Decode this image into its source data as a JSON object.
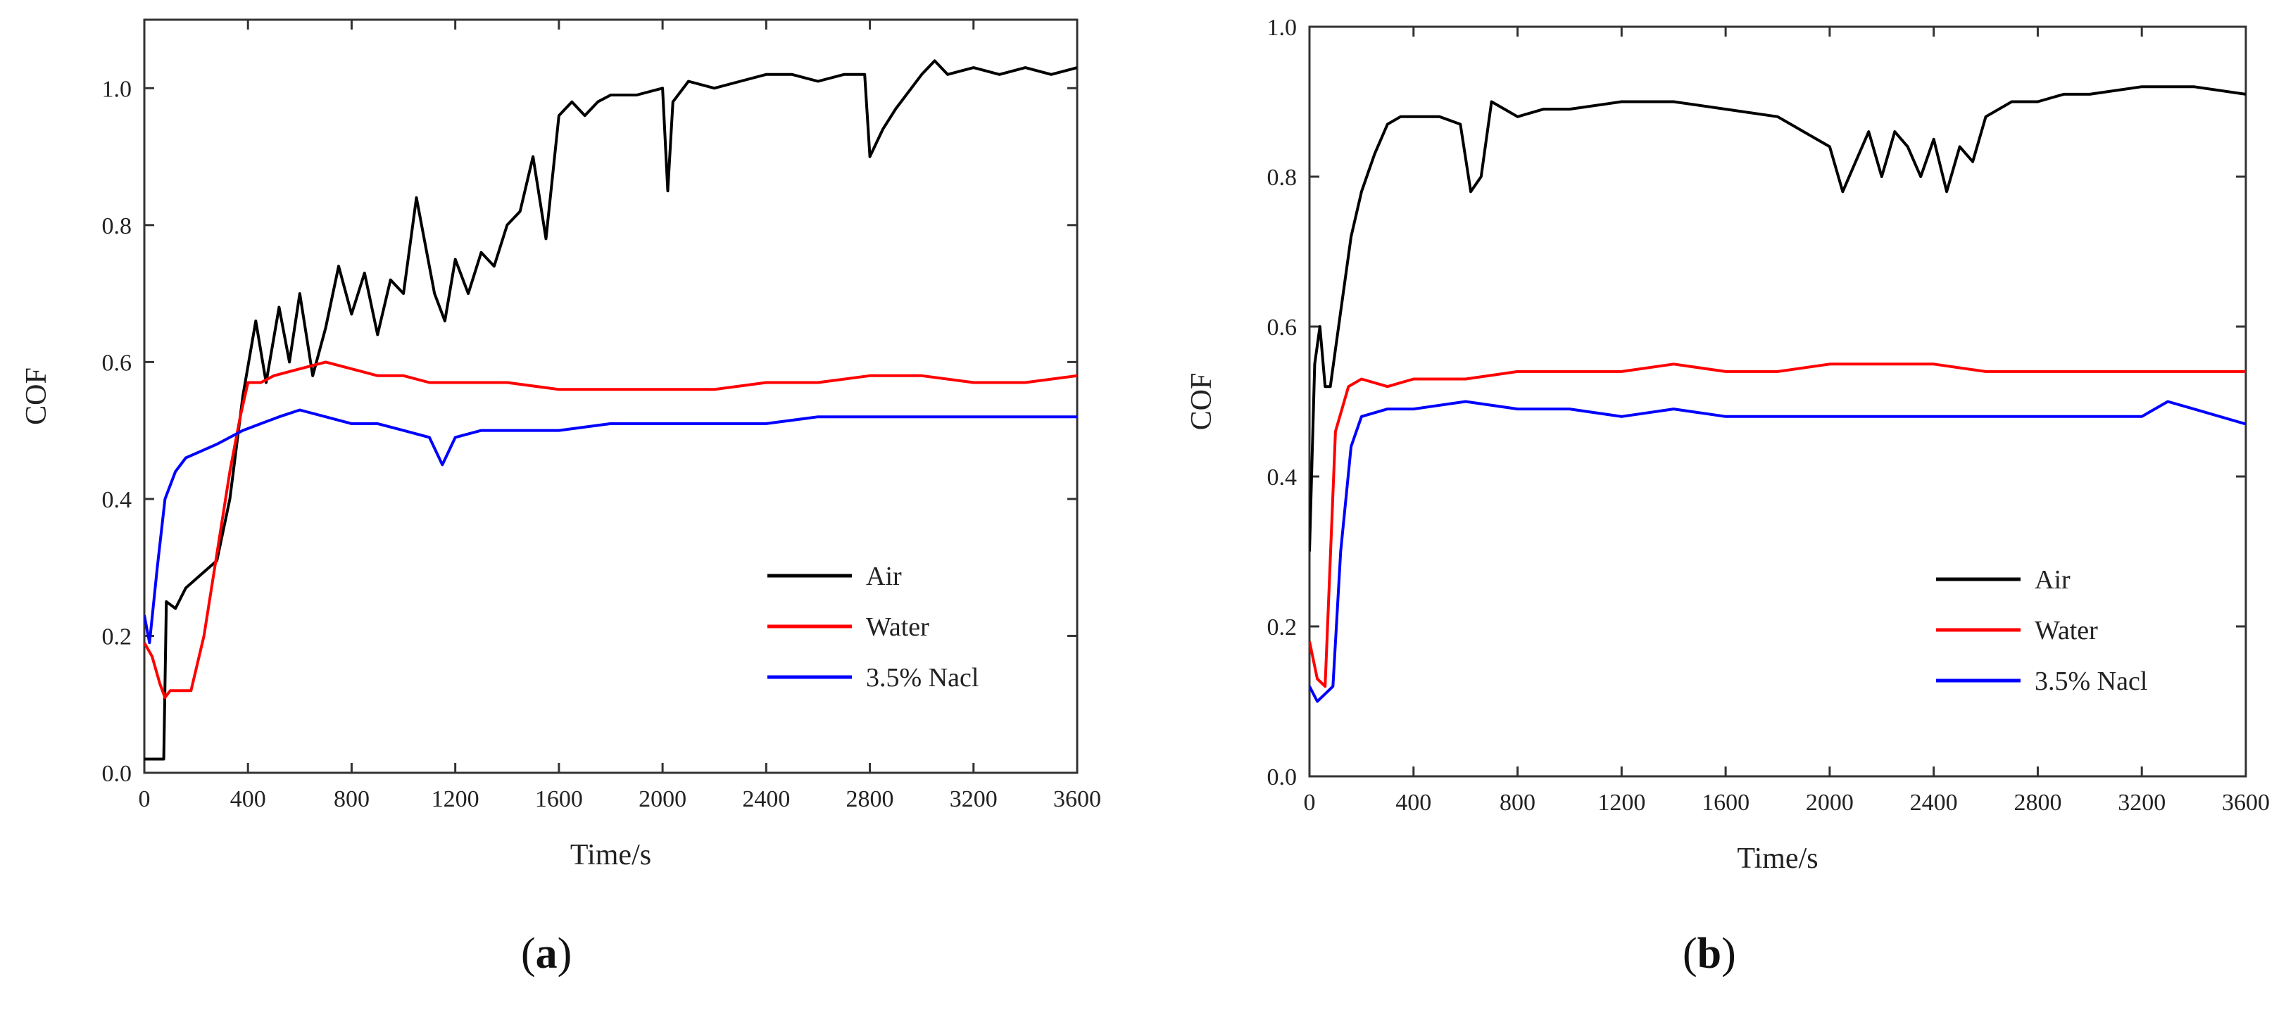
{
  "chart_data": [
    {
      "panel_label": "(a)",
      "panel_letter": "a",
      "type": "line",
      "xlabel": "Time/s",
      "ylabel": "COF",
      "xlim": [
        0,
        3600
      ],
      "ylim": [
        0.0,
        1.1
      ],
      "xticks": [
        0,
        400,
        800,
        1200,
        1600,
        2000,
        2400,
        2800,
        3200,
        3600
      ],
      "yticks": [
        0.0,
        0.2,
        0.4,
        0.6,
        0.8,
        1.0
      ],
      "legend_position": "bottom-right",
      "series": [
        {
          "name": "Air",
          "color": "#000000",
          "points": [
            [
              0,
              0.02
            ],
            [
              40,
              0.02
            ],
            [
              75,
              0.02
            ],
            [
              85,
              0.25
            ],
            [
              120,
              0.24
            ],
            [
              160,
              0.27
            ],
            [
              220,
              0.29
            ],
            [
              280,
              0.31
            ],
            [
              330,
              0.4
            ],
            [
              380,
              0.55
            ],
            [
              430,
              0.66
            ],
            [
              470,
              0.57
            ],
            [
              520,
              0.68
            ],
            [
              560,
              0.6
            ],
            [
              600,
              0.7
            ],
            [
              650,
              0.58
            ],
            [
              700,
              0.65
            ],
            [
              750,
              0.74
            ],
            [
              800,
              0.67
            ],
            [
              850,
              0.73
            ],
            [
              900,
              0.64
            ],
            [
              950,
              0.72
            ],
            [
              1000,
              0.7
            ],
            [
              1050,
              0.84
            ],
            [
              1080,
              0.78
            ],
            [
              1120,
              0.7
            ],
            [
              1160,
              0.66
            ],
            [
              1200,
              0.75
            ],
            [
              1250,
              0.7
            ],
            [
              1300,
              0.76
            ],
            [
              1350,
              0.74
            ],
            [
              1400,
              0.8
            ],
            [
              1450,
              0.82
            ],
            [
              1500,
              0.9
            ],
            [
              1550,
              0.78
            ],
            [
              1600,
              0.96
            ],
            [
              1650,
              0.98
            ],
            [
              1700,
              0.96
            ],
            [
              1750,
              0.98
            ],
            [
              1800,
              0.99
            ],
            [
              1900,
              0.99
            ],
            [
              2000,
              1.0
            ],
            [
              2020,
              0.85
            ],
            [
              2040,
              0.98
            ],
            [
              2100,
              1.01
            ],
            [
              2200,
              1.0
            ],
            [
              2300,
              1.01
            ],
            [
              2400,
              1.02
            ],
            [
              2500,
              1.02
            ],
            [
              2600,
              1.01
            ],
            [
              2700,
              1.02
            ],
            [
              2780,
              1.02
            ],
            [
              2800,
              0.9
            ],
            [
              2850,
              0.94
            ],
            [
              2900,
              0.97
            ],
            [
              3000,
              1.02
            ],
            [
              3050,
              1.04
            ],
            [
              3100,
              1.02
            ],
            [
              3200,
              1.03
            ],
            [
              3300,
              1.02
            ],
            [
              3400,
              1.03
            ],
            [
              3500,
              1.02
            ],
            [
              3600,
              1.03
            ]
          ]
        },
        {
          "name": "Water",
          "color": "#ff0000",
          "points": [
            [
              0,
              0.19
            ],
            [
              30,
              0.17
            ],
            [
              60,
              0.13
            ],
            [
              80,
              0.11
            ],
            [
              100,
              0.12
            ],
            [
              140,
              0.12
            ],
            [
              180,
              0.12
            ],
            [
              230,
              0.2
            ],
            [
              280,
              0.32
            ],
            [
              330,
              0.44
            ],
            [
              370,
              0.52
            ],
            [
              400,
              0.57
            ],
            [
              450,
              0.57
            ],
            [
              500,
              0.58
            ],
            [
              600,
              0.59
            ],
            [
              700,
              0.6
            ],
            [
              800,
              0.59
            ],
            [
              900,
              0.58
            ],
            [
              1000,
              0.58
            ],
            [
              1100,
              0.57
            ],
            [
              1200,
              0.57
            ],
            [
              1400,
              0.57
            ],
            [
              1600,
              0.56
            ],
            [
              1800,
              0.56
            ],
            [
              2000,
              0.56
            ],
            [
              2200,
              0.56
            ],
            [
              2400,
              0.57
            ],
            [
              2600,
              0.57
            ],
            [
              2800,
              0.58
            ],
            [
              3000,
              0.58
            ],
            [
              3200,
              0.57
            ],
            [
              3400,
              0.57
            ],
            [
              3600,
              0.58
            ]
          ]
        },
        {
          "name": "3.5% Nacl",
          "color": "#0000ff",
          "points": [
            [
              0,
              0.23
            ],
            [
              20,
              0.19
            ],
            [
              50,
              0.3
            ],
            [
              80,
              0.4
            ],
            [
              120,
              0.44
            ],
            [
              160,
              0.46
            ],
            [
              220,
              0.47
            ],
            [
              280,
              0.48
            ],
            [
              330,
              0.49
            ],
            [
              380,
              0.5
            ],
            [
              450,
              0.51
            ],
            [
              520,
              0.52
            ],
            [
              600,
              0.53
            ],
            [
              700,
              0.52
            ],
            [
              800,
              0.51
            ],
            [
              900,
              0.51
            ],
            [
              1000,
              0.5
            ],
            [
              1100,
              0.49
            ],
            [
              1150,
              0.45
            ],
            [
              1200,
              0.49
            ],
            [
              1300,
              0.5
            ],
            [
              1400,
              0.5
            ],
            [
              1600,
              0.5
            ],
            [
              1800,
              0.51
            ],
            [
              2000,
              0.51
            ],
            [
              2200,
              0.51
            ],
            [
              2400,
              0.51
            ],
            [
              2600,
              0.52
            ],
            [
              2800,
              0.52
            ],
            [
              3000,
              0.52
            ],
            [
              3200,
              0.52
            ],
            [
              3400,
              0.52
            ],
            [
              3600,
              0.52
            ]
          ]
        }
      ]
    },
    {
      "panel_label": "(b)",
      "panel_letter": "b",
      "type": "line",
      "xlabel": "Time/s",
      "ylabel": "COF",
      "xlim": [
        0,
        3600
      ],
      "ylim": [
        0.0,
        1.0
      ],
      "xticks": [
        0,
        400,
        800,
        1200,
        1600,
        2000,
        2400,
        2800,
        3200,
        3600
      ],
      "yticks": [
        0.0,
        0.2,
        0.4,
        0.6,
        0.8,
        1.0
      ],
      "legend_position": "bottom-right",
      "series": [
        {
          "name": "Air",
          "color": "#000000",
          "points": [
            [
              0,
              0.3
            ],
            [
              20,
              0.55
            ],
            [
              40,
              0.6
            ],
            [
              60,
              0.52
            ],
            [
              80,
              0.52
            ],
            [
              120,
              0.62
            ],
            [
              160,
              0.72
            ],
            [
              200,
              0.78
            ],
            [
              250,
              0.83
            ],
            [
              300,
              0.87
            ],
            [
              350,
              0.88
            ],
            [
              400,
              0.88
            ],
            [
              500,
              0.88
            ],
            [
              580,
              0.87
            ],
            [
              620,
              0.78
            ],
            [
              660,
              0.8
            ],
            [
              700,
              0.9
            ],
            [
              750,
              0.89
            ],
            [
              800,
              0.88
            ],
            [
              900,
              0.89
            ],
            [
              1000,
              0.89
            ],
            [
              1200,
              0.9
            ],
            [
              1400,
              0.9
            ],
            [
              1600,
              0.89
            ],
            [
              1800,
              0.88
            ],
            [
              1900,
              0.86
            ],
            [
              2000,
              0.84
            ],
            [
              2050,
              0.78
            ],
            [
              2100,
              0.82
            ],
            [
              2150,
              0.86
            ],
            [
              2200,
              0.8
            ],
            [
              2250,
              0.86
            ],
            [
              2300,
              0.84
            ],
            [
              2350,
              0.8
            ],
            [
              2400,
              0.85
            ],
            [
              2450,
              0.78
            ],
            [
              2500,
              0.84
            ],
            [
              2550,
              0.82
            ],
            [
              2600,
              0.88
            ],
            [
              2700,
              0.9
            ],
            [
              2800,
              0.9
            ],
            [
              2900,
              0.91
            ],
            [
              3000,
              0.91
            ],
            [
              3200,
              0.92
            ],
            [
              3400,
              0.92
            ],
            [
              3600,
              0.91
            ]
          ]
        },
        {
          "name": "Water",
          "color": "#ff0000",
          "points": [
            [
              0,
              0.18
            ],
            [
              30,
              0.13
            ],
            [
              60,
              0.12
            ],
            [
              100,
              0.46
            ],
            [
              150,
              0.52
            ],
            [
              200,
              0.53
            ],
            [
              300,
              0.52
            ],
            [
              400,
              0.53
            ],
            [
              600,
              0.53
            ],
            [
              800,
              0.54
            ],
            [
              1000,
              0.54
            ],
            [
              1200,
              0.54
            ],
            [
              1400,
              0.55
            ],
            [
              1600,
              0.54
            ],
            [
              1800,
              0.54
            ],
            [
              2000,
              0.55
            ],
            [
              2200,
              0.55
            ],
            [
              2400,
              0.55
            ],
            [
              2600,
              0.54
            ],
            [
              2800,
              0.54
            ],
            [
              3000,
              0.54
            ],
            [
              3200,
              0.54
            ],
            [
              3400,
              0.54
            ],
            [
              3600,
              0.54
            ]
          ]
        },
        {
          "name": "3.5% Nacl",
          "color": "#0000ff",
          "points": [
            [
              0,
              0.12
            ],
            [
              30,
              0.1
            ],
            [
              60,
              0.11
            ],
            [
              90,
              0.12
            ],
            [
              120,
              0.3
            ],
            [
              160,
              0.44
            ],
            [
              200,
              0.48
            ],
            [
              300,
              0.49
            ],
            [
              400,
              0.49
            ],
            [
              600,
              0.5
            ],
            [
              800,
              0.49
            ],
            [
              1000,
              0.49
            ],
            [
              1200,
              0.48
            ],
            [
              1400,
              0.49
            ],
            [
              1600,
              0.48
            ],
            [
              1800,
              0.48
            ],
            [
              2000,
              0.48
            ],
            [
              2200,
              0.48
            ],
            [
              2400,
              0.48
            ],
            [
              2600,
              0.48
            ],
            [
              2800,
              0.48
            ],
            [
              3000,
              0.48
            ],
            [
              3200,
              0.48
            ],
            [
              3300,
              0.5
            ],
            [
              3400,
              0.49
            ],
            [
              3600,
              0.47
            ]
          ]
        }
      ]
    }
  ]
}
